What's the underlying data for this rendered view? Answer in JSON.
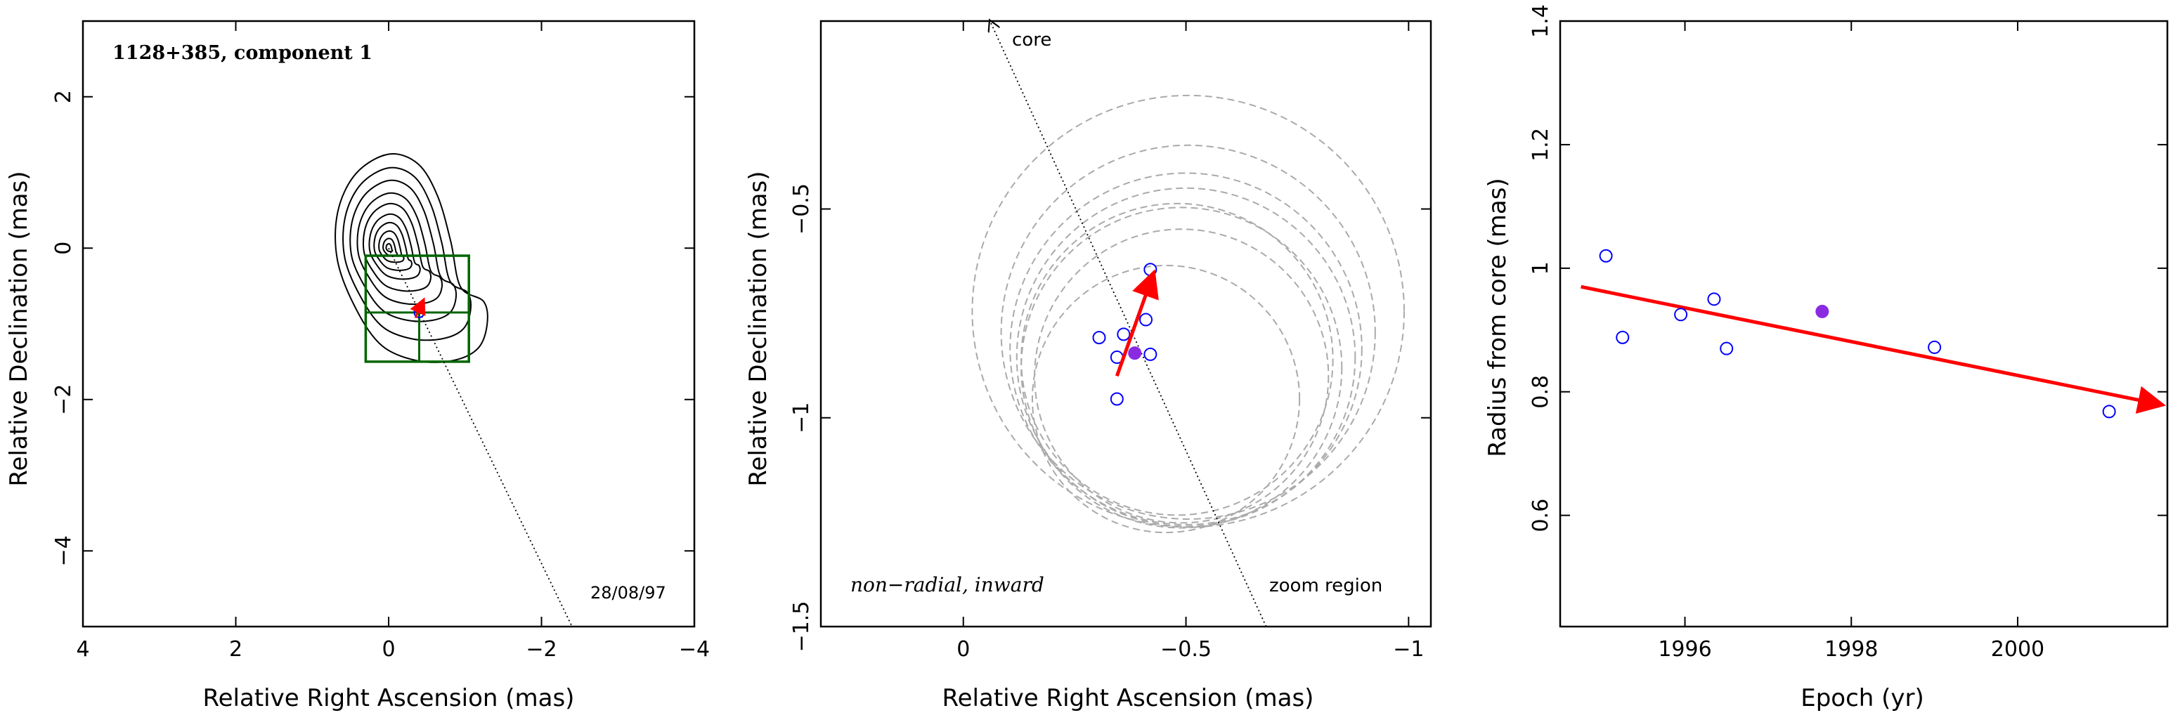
{
  "chart_data": [
    {
      "type": "contour",
      "title": "1128+385, component 1",
      "xlabel": "Relative Right Ascension (mas)",
      "ylabel": "Relative Declination (mas)",
      "xlim": [
        4,
        -4
      ],
      "ylim": [
        -5,
        3
      ],
      "xticks": [
        4,
        2,
        0,
        -2,
        -4
      ],
      "yticks": [
        2,
        0,
        -2,
        -4
      ],
      "xtick_labels": [
        "4",
        "2",
        "0",
        "−2",
        "−4"
      ],
      "ytick_labels": [
        "2",
        "0",
        "−2",
        "−4"
      ],
      "annotation": "28/08/97",
      "peak": [
        0,
        0
      ],
      "contour_scales": [
        0.15,
        0.28,
        0.4,
        0.52,
        0.62,
        0.72,
        0.8,
        0.88,
        0.95,
        1.0
      ],
      "component": {
        "x": -0.4,
        "y": -0.85
      },
      "vector": {
        "from": [
          -0.35,
          -0.92
        ],
        "to": [
          -0.45,
          -0.7
        ]
      },
      "zoom_box": {
        "x_range": [
          0.3,
          -1.05
        ],
        "y_range": [
          -1.5,
          -0.1
        ]
      },
      "zoom_box_dividers": {
        "x": -0.4,
        "y": -0.85
      },
      "core_line": {
        "from": [
          0,
          0
        ],
        "to": [
          -2.4,
          -5.0
        ]
      }
    },
    {
      "type": "scatter",
      "xlabel": "Relative Right Ascension (mas)",
      "ylabel": "Relative Declination (mas)",
      "xlim": [
        0.32,
        -1.05
      ],
      "ylim": [
        -1.5,
        -0.05
      ],
      "xticks": [
        0,
        -0.5,
        -1
      ],
      "yticks": [
        -0.5,
        -1,
        -1.5
      ],
      "xtick_labels": [
        "0",
        "−0.5",
        "−1"
      ],
      "ytick_labels": [
        "−0.5",
        "−1",
        "−1.5"
      ],
      "points": [
        {
          "x": -0.42,
          "y": -0.645
        },
        {
          "x": -0.41,
          "y": -0.765
        },
        {
          "x": -0.36,
          "y": -0.8
        },
        {
          "x": -0.305,
          "y": -0.808
        },
        {
          "x": -0.42,
          "y": -0.848
        },
        {
          "x": -0.345,
          "y": -0.855
        },
        {
          "x": -0.345,
          "y": -0.955
        }
      ],
      "highlight_point": {
        "x": -0.385,
        "y": -0.845
      },
      "error_circles": [
        {
          "cx": -0.505,
          "cy": -0.745,
          "r": 0.485
        },
        {
          "cx": -0.505,
          "cy": -0.795,
          "r": 0.42
        },
        {
          "cx": -0.5,
          "cy": -0.855,
          "r": 0.38
        },
        {
          "cx": -0.49,
          "cy": -0.88,
          "r": 0.36
        },
        {
          "cx": -0.49,
          "cy": -0.9,
          "r": 0.33
        },
        {
          "cx": -0.455,
          "cy": -0.955,
          "r": 0.3
        },
        {
          "cx": -0.5,
          "cy": -0.835,
          "r": 0.395
        },
        {
          "cx": -0.48,
          "cy": -0.86,
          "r": 0.35
        }
      ],
      "vector": {
        "from": [
          -0.345,
          -0.9
        ],
        "to": [
          -0.425,
          -0.66
        ]
      },
      "core_line": {
        "from": [
          -0.68,
          -1.5
        ],
        "to": [
          -0.06,
          -0.05
        ]
      },
      "core_label": "core",
      "annotation_left": "non−radial, inward",
      "annotation_right": "zoom region"
    },
    {
      "type": "scatter",
      "xlabel": "Epoch (yr)",
      "ylabel": "Radius from core (mas)",
      "xlim": [
        1994.5,
        2001.8
      ],
      "ylim": [
        0.42,
        1.4
      ],
      "xticks": [
        1996,
        1998,
        2000
      ],
      "yticks": [
        0.6,
        0.8,
        1.0,
        1.2,
        1.4
      ],
      "xtick_labels": [
        "1996",
        "1998",
        "2000"
      ],
      "ytick_labels": [
        "0.6",
        "0.8",
        "1",
        "1.2",
        "1.4"
      ],
      "x": [
        1995.05,
        1995.25,
        1995.95,
        1996.35,
        1996.5,
        1999.0,
        2001.1
      ],
      "y": [
        1.02,
        0.888,
        0.925,
        0.95,
        0.87,
        0.872,
        0.768
      ],
      "highlight_point": {
        "x": 1997.65,
        "y": 0.93
      },
      "fit_line": {
        "from": [
          1994.75,
          0.97
        ],
        "to": [
          2001.7,
          0.78
        ]
      }
    }
  ],
  "colors": {
    "axes": "#000000",
    "contour": "#000000",
    "vector": "#ff0000",
    "points": "#0000ff",
    "highlight": "#8a2be2",
    "zoom_box": "#006400",
    "circles": "#aaaaaa"
  }
}
